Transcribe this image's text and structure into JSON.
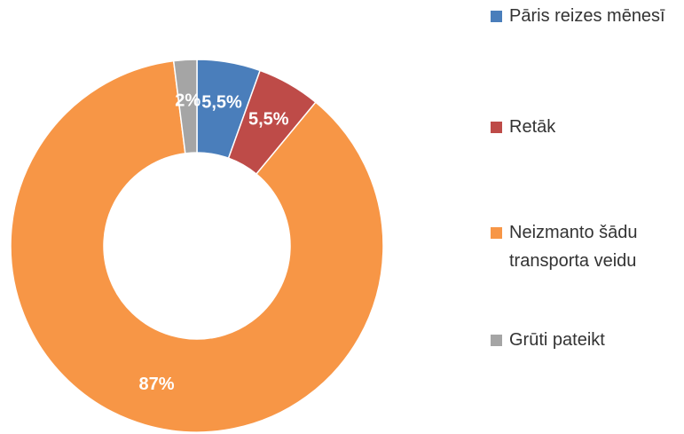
{
  "chart_data": {
    "type": "donut",
    "categories": [
      "Pāris reizes mēnesī",
      "Retāk",
      "Neizmanto šādu transporta veidu",
      "Grūti pateikt"
    ],
    "values": [
      5.5,
      5.5,
      87,
      2
    ],
    "value_labels": [
      "5,5%",
      "5,5%",
      "87%",
      "2%"
    ],
    "colors": [
      "#4a7ebb",
      "#be4b48",
      "#f79646",
      "#a5a5a5"
    ],
    "legend": "right"
  }
}
